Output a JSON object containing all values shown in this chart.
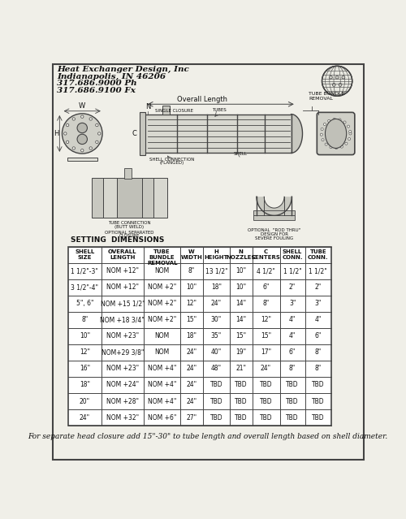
{
  "title_company": "Heat Exchanger Design, Inc",
  "title_city": "Indianapolis, IN 46206",
  "title_phone": "317.686.9000 Ph",
  "title_fax": "317.686.9100 Fx",
  "table_title": "SETTING  DIMENSIONS",
  "col_headers": [
    "SHELL\nSIZE",
    "OVERALL\nLENGTH",
    "TUBE\nBUNDLE\nREMOVAL",
    "W\nWIDTH",
    "H\nHEIGHT",
    "N\nNOZZLES",
    "C\nCENTERS",
    "SHELL\nCONN.",
    "TUBE\nCONN."
  ],
  "rows": [
    [
      "1 1/2\"-3\"",
      "NOM +12\"",
      "NOM",
      "8\"",
      "13 1/2\"",
      "10\"",
      "4 1/2\"",
      "1 1/2\"",
      "1 1/2\""
    ],
    [
      "3 1/2\"-4\"",
      "NOM +12\"",
      "NOM +2\"",
      "10\"",
      "18\"",
      "10\"",
      "6\"",
      "2\"",
      "2\""
    ],
    [
      "5\", 6\"",
      "NOM +15 1/2\"",
      "NOM +2\"",
      "12\"",
      "24\"",
      "14\"",
      "8\"",
      "3\"",
      "3\""
    ],
    [
      "8\"",
      "NOM +18 3/4\"",
      "NOM +2\"",
      "15\"",
      "30\"",
      "14\"",
      "12\"",
      "4\"",
      "4\""
    ],
    [
      "10\"",
      "NOM +23\"",
      "NOM",
      "18\"",
      "35\"",
      "15\"",
      "15\"",
      "4\"",
      "6\""
    ],
    [
      "12\"",
      "NOM+29 3/8\"",
      "NOM",
      "24\"",
      "40\"",
      "19\"",
      "17\"",
      "6\"",
      "8\""
    ],
    [
      "16\"",
      "NOM +23\"",
      "NOM +4\"",
      "24\"",
      "48\"",
      "21\"",
      "24\"",
      "8\"",
      "8\""
    ],
    [
      "18\"",
      "NOM +24\"",
      "NOM +4\"",
      "24\"",
      "TBD",
      "TBD",
      "TBD",
      "TBD",
      "TBD"
    ],
    [
      "20\"",
      "NOM +28\"",
      "NOM +4\"",
      "24\"",
      "TBD",
      "TBD",
      "TBD",
      "TBD",
      "TBD"
    ],
    [
      "24\"",
      "NOM +32\"",
      "NOM +6\"",
      "27\"",
      "TBD",
      "TBD",
      "TBD",
      "TBD",
      "TBD"
    ]
  ],
  "footer": "For separate head closure add 15\"-30\" to tube length and overall length based on shell diameter.",
  "bg_color": "#f0efe8",
  "line_color": "#444444",
  "text_color": "#111111"
}
